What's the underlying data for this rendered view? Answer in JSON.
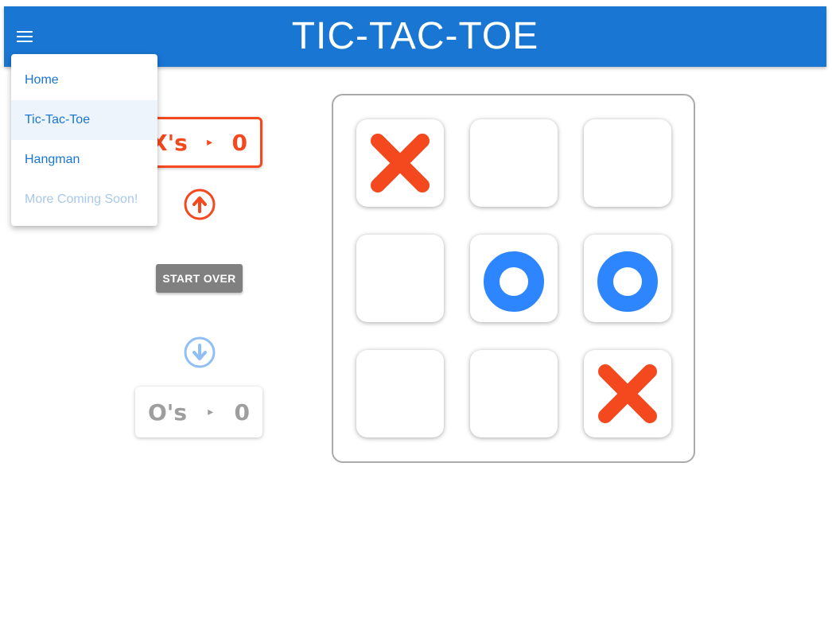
{
  "header": {
    "title": "TIC-TAC-TOE"
  },
  "menu": {
    "items": [
      {
        "label": "Home"
      },
      {
        "label": "Tic-Tac-Toe"
      },
      {
        "label": "Hangman"
      },
      {
        "label": "More Coming Soon!"
      }
    ]
  },
  "scores": {
    "x": {
      "label": "X's",
      "arrow": "▸",
      "value": "0"
    },
    "o": {
      "label": "O's",
      "arrow": "▸",
      "value": "0"
    }
  },
  "controls": {
    "start_over": "START OVER"
  },
  "board": [
    [
      "X",
      "",
      ""
    ],
    [
      "",
      "O",
      "O"
    ],
    [
      "",
      "",
      "X"
    ]
  ],
  "colors": {
    "primary": "#1976d2",
    "x_color": "#f4481e",
    "o_color": "#2e86ff",
    "inactive_grey": "#9e9e9e"
  },
  "icons": {
    "menu": "hamburger-menu-icon",
    "x_turn": "arrow-up-circle-icon",
    "o_turn": "arrow-down-circle-icon"
  }
}
